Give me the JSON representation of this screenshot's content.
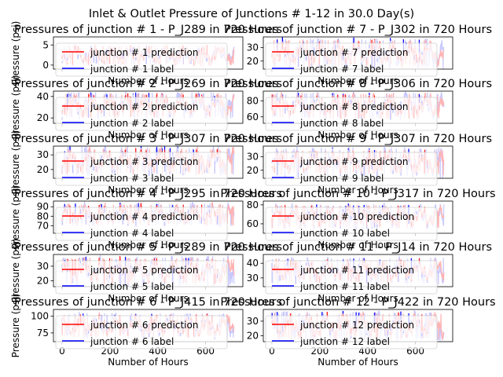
{
  "figure": {
    "suptitle": "Inlet & Outlet Pressure of Junctions # 1-12 in 30.0 Day(s)",
    "xlabel": "Number of Hours",
    "ylabel": "Pressure (psi)"
  },
  "colors": {
    "prediction": "#ff0000",
    "label": "#0000ff",
    "prediction_fill": "#ffb3b3",
    "label_fill": "#c8c8ff"
  },
  "chart_data": [
    {
      "type": "line",
      "title": "Pressures of junction # 1 - P_J289 in 720 Hours",
      "xlabel": "Number of Hours",
      "ylabel": "Pressure (psi)",
      "xlim": [
        -36,
        756
      ],
      "ylim": [
        -1,
        7
      ],
      "yticks": [
        0,
        5
      ],
      "xticks": [
        0,
        200,
        400,
        600
      ],
      "legend": "upper-left",
      "series": [
        {
          "name": "junction # 1 prediction",
          "base": 2.5,
          "amp": 2.3
        },
        {
          "name": "junction # 1 label",
          "base": 2.5,
          "amp": 2.0
        }
      ]
    },
    {
      "type": "line",
      "title": "Pressures of junction # 7 - P_J302 in 720 Hours",
      "xlabel": "Number of Hours",
      "ylabel": "",
      "xlim": [
        -36,
        756
      ],
      "ylim": [
        14,
        38
      ],
      "yticks": [
        20,
        30
      ],
      "xticks": [
        0,
        200,
        400,
        600
      ],
      "legend": "upper-left",
      "series": [
        {
          "name": "junction # 7 prediction",
          "base": 26,
          "amp": 9
        },
        {
          "name": "junction # 7 label",
          "base": 26,
          "amp": 10
        }
      ]
    },
    {
      "type": "line",
      "title": "Pressures of junction # 2 - P_J269 in 720 Hours",
      "xlabel": "Number of Hours",
      "ylabel": "Pressure (psi)",
      "xlim": [
        -36,
        756
      ],
      "ylim": [
        15,
        45
      ],
      "yticks": [
        20,
        40
      ],
      "xticks": [
        0,
        200,
        400,
        600
      ],
      "legend": "upper-left",
      "series": [
        {
          "name": "junction # 2 prediction",
          "base": 32,
          "amp": 10
        },
        {
          "name": "junction # 2 label",
          "base": 32,
          "amp": 11
        }
      ]
    },
    {
      "type": "line",
      "title": "Pressures of junction # 8 - P_J306 in 720 Hours",
      "xlabel": "Number of Hours",
      "ylabel": "",
      "xlim": [
        -36,
        756
      ],
      "ylim": [
        52,
        92
      ],
      "yticks": [
        60,
        80
      ],
      "xticks": [
        0,
        200,
        400,
        600
      ],
      "legend": "upper-left",
      "series": [
        {
          "name": "junction # 8 prediction",
          "base": 74,
          "amp": 14
        },
        {
          "name": "junction # 8 label",
          "base": 74,
          "amp": 15
        }
      ]
    },
    {
      "type": "line",
      "title": "Pressures of junction # 3 - P_J307 in 720 Hours",
      "xlabel": "Number of Hours",
      "ylabel": "Pressure (psi)",
      "xlim": [
        -36,
        756
      ],
      "ylim": [
        14,
        36
      ],
      "yticks": [
        20,
        30
      ],
      "xticks": [
        0,
        200,
        400,
        600
      ],
      "legend": "upper-left",
      "series": [
        {
          "name": "junction # 3 prediction",
          "base": 26,
          "amp": 8
        },
        {
          "name": "junction # 3 label",
          "base": 26,
          "amp": 9
        }
      ]
    },
    {
      "type": "line",
      "title": "Pressures of junction # 9 - P_J307 in 720 Hours",
      "xlabel": "Number of Hours",
      "ylabel": "",
      "xlim": [
        -36,
        756
      ],
      "ylim": [
        14,
        38
      ],
      "yticks": [
        20,
        30
      ],
      "xticks": [
        0,
        200,
        400,
        600
      ],
      "legend": "upper-left",
      "series": [
        {
          "name": "junction # 9 prediction",
          "base": 26,
          "amp": 8
        },
        {
          "name": "junction # 9 label",
          "base": 26,
          "amp": 10
        }
      ]
    },
    {
      "type": "line",
      "title": "Pressures of junction # 4 - P_J295 in 720 Hours",
      "xlabel": "Number of Hours",
      "ylabel": "Pressure (psi)",
      "xlim": [
        -36,
        756
      ],
      "ylim": [
        62,
        96
      ],
      "yticks": [
        70,
        80,
        90
      ],
      "xticks": [
        0,
        200,
        400,
        600
      ],
      "legend": "upper-left",
      "series": [
        {
          "name": "junction # 4 prediction",
          "base": 82,
          "amp": 10
        },
        {
          "name": "junction # 4 label",
          "base": 82,
          "amp": 11
        }
      ]
    },
    {
      "type": "line",
      "title": "Pressures of junction # 10 - P_J317 in 720 Hours",
      "xlabel": "Number of Hours",
      "ylabel": "",
      "xlim": [
        -36,
        756
      ],
      "ylim": [
        50,
        84
      ],
      "yticks": [
        60,
        80
      ],
      "xticks": [
        0,
        200,
        400,
        600
      ],
      "legend": "upper-left",
      "series": [
        {
          "name": "junction # 10 prediction",
          "base": 68,
          "amp": 11
        },
        {
          "name": "junction # 10 label",
          "base": 68,
          "amp": 12
        }
      ]
    },
    {
      "type": "line",
      "title": "Pressures of junction # 5 - P_J289 in 720 Hours",
      "xlabel": "Number of Hours",
      "ylabel": "Pressure (psi)",
      "xlim": [
        -36,
        756
      ],
      "ylim": [
        16,
        38
      ],
      "yticks": [
        20,
        30
      ],
      "xticks": [
        0,
        200,
        400,
        600
      ],
      "legend": "upper-left",
      "series": [
        {
          "name": "junction # 5 prediction",
          "base": 27,
          "amp": 8
        },
        {
          "name": "junction # 5 label",
          "base": 27,
          "amp": 9
        }
      ]
    },
    {
      "type": "line",
      "title": "Pressures of junction # 11 - P_J14 in 720 Hours",
      "xlabel": "Number of Hours",
      "ylabel": "",
      "xlim": [
        -36,
        756
      ],
      "ylim": [
        24,
        46
      ],
      "yticks": [
        30,
        40
      ],
      "xticks": [
        0,
        200,
        400,
        600
      ],
      "legend": "upper-left",
      "series": [
        {
          "name": "junction # 11 prediction",
          "base": 35,
          "amp": 7
        },
        {
          "name": "junction # 11 label",
          "base": 35,
          "amp": 8
        }
      ]
    },
    {
      "type": "line",
      "title": "Pressures of junction # 6 - P_J415 in 720 Hours",
      "xlabel": "Number of Hours",
      "ylabel": "Pressure (psi)",
      "xlim": [
        -36,
        756
      ],
      "ylim": [
        62,
        110
      ],
      "yticks": [
        75,
        100
      ],
      "xticks": [
        0,
        200,
        400,
        600
      ],
      "legend": "upper-left",
      "series": [
        {
          "name": "junction # 6 prediction",
          "base": 86,
          "amp": 15
        },
        {
          "name": "junction # 6 label",
          "base": 86,
          "amp": 17
        }
      ]
    },
    {
      "type": "line",
      "title": "Pressures of junction # 12 - P_J422 in 720 Hours",
      "xlabel": "Number of Hours",
      "ylabel": "",
      "xlim": [
        -36,
        756
      ],
      "ylim": [
        16,
        38
      ],
      "yticks": [
        20,
        30
      ],
      "xticks": [
        0,
        200,
        400,
        600
      ],
      "legend": "upper-left",
      "series": [
        {
          "name": "junction # 12 prediction",
          "base": 27,
          "amp": 8
        },
        {
          "name": "junction # 12 label",
          "base": 27,
          "amp": 9
        }
      ]
    }
  ]
}
